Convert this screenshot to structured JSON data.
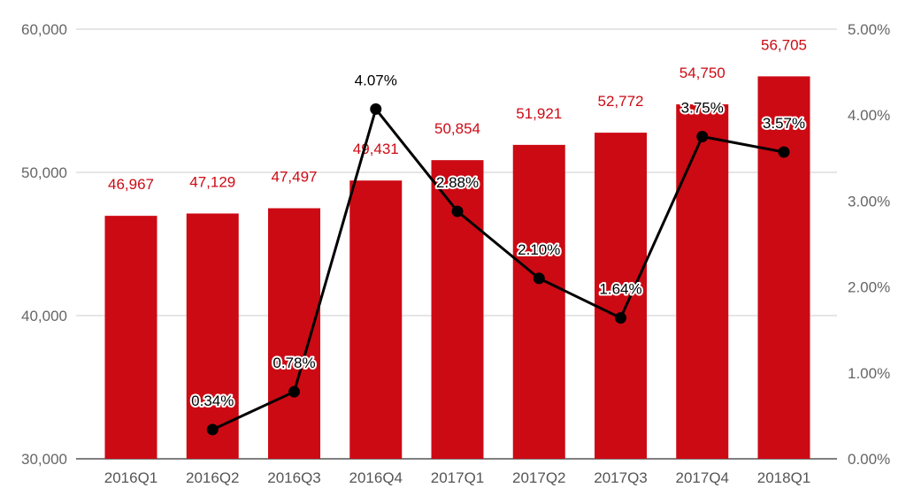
{
  "chart_data": {
    "type": "bar+line",
    "categories": [
      "2016Q1",
      "2016Q2",
      "2016Q3",
      "2016Q4",
      "2017Q1",
      "2017Q2",
      "2017Q3",
      "2017Q4",
      "2018Q1"
    ],
    "series": [
      {
        "type": "bar",
        "axis": "left",
        "values": [
          46967,
          47129,
          47497,
          49431,
          50854,
          51921,
          52772,
          54750,
          56705
        ],
        "labels": [
          "46,967",
          "47,129",
          "47,497",
          "49,431",
          "50,854",
          "51,921",
          "52,772",
          "54,750",
          "56,705"
        ],
        "color": "#cc0a14"
      },
      {
        "type": "line",
        "axis": "right",
        "values": [
          null,
          0.34,
          0.78,
          4.07,
          2.88,
          2.1,
          1.64,
          3.75,
          3.57
        ],
        "labels": [
          "",
          "0.34%",
          "0.78%",
          "4.07%",
          "2.88%",
          "2.10%",
          "1.64%",
          "3.75%",
          "3.57%"
        ],
        "color": "#000000"
      }
    ],
    "y_left": {
      "min": 30000,
      "max": 60000,
      "ticks": [
        30000,
        40000,
        50000,
        60000
      ],
      "tick_labels": [
        "30,000",
        "40,000",
        "50,000",
        "60,000"
      ]
    },
    "y_right": {
      "min": 0,
      "max": 5,
      "ticks": [
        0,
        1,
        2,
        3,
        4,
        5
      ],
      "tick_labels": [
        "0.00%",
        "1.00%",
        "2.00%",
        "3.00%",
        "4.00%",
        "5.00%"
      ]
    },
    "grid": true,
    "legend": "none",
    "title": "",
    "xlabel": "",
    "ylabel": ""
  }
}
